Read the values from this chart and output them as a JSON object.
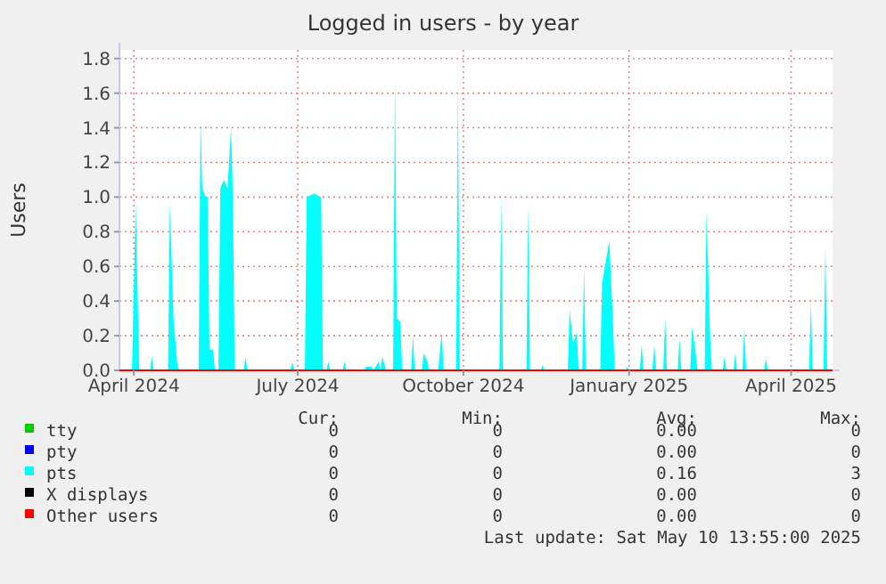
{
  "chart_data": {
    "type": "area",
    "title": "Logged in users - by year",
    "ylabel": "Users",
    "xlim": [
      "2024-03-24",
      "2025-04-24"
    ],
    "xticks": [
      {
        "value": "2024-04-01",
        "label": "April 2024"
      },
      {
        "value": "2024-07-01",
        "label": "July 2024"
      },
      {
        "value": "2024-10-01",
        "label": "October 2024"
      },
      {
        "value": "2025-01-01",
        "label": "January 2025"
      },
      {
        "value": "2025-04-01",
        "label": "April 2025"
      }
    ],
    "ylim": [
      0,
      1.85
    ],
    "yticks": [
      {
        "value": 0,
        "label": "0.0"
      },
      {
        "value": 0.2,
        "label": "0.2"
      },
      {
        "value": 0.4,
        "label": "0.4"
      },
      {
        "value": 0.6,
        "label": "0.6"
      },
      {
        "value": 0.8,
        "label": "0.8"
      },
      {
        "value": 1,
        "label": "1.0"
      },
      {
        "value": 1.2,
        "label": "1.2"
      },
      {
        "value": 1.4,
        "label": "1.4"
      },
      {
        "value": 1.6,
        "label": "1.6"
      },
      {
        "value": 1.8,
        "label": "1.8"
      }
    ],
    "grid": true,
    "legend": "bottom",
    "series": [
      {
        "name": "tty",
        "type": "line",
        "color": "#00cc00"
      },
      {
        "name": "pty",
        "type": "line",
        "color": "#0000ff"
      },
      {
        "name": "pts",
        "color": "#00ffff",
        "x": [
          "2024-03-24",
          "2024-03-31",
          "2024-04-02",
          "2024-04-04",
          "2024-04-10",
          "2024-04-11",
          "2024-04-12",
          "2024-04-20",
          "2024-04-21",
          "2024-04-23",
          "2024-04-25",
          "2024-04-26",
          "2024-05-07",
          "2024-05-08",
          "2024-05-09",
          "2024-05-11",
          "2024-05-12",
          "2024-05-13",
          "2024-05-15",
          "2024-05-16",
          "2024-05-18",
          "2024-05-19",
          "2024-05-21",
          "2024-05-23",
          "2024-05-25",
          "2024-05-26",
          "2024-05-27",
          "2024-06-01",
          "2024-06-02",
          "2024-06-03",
          "2024-06-27",
          "2024-06-28",
          "2024-06-29",
          "2024-07-05",
          "2024-07-06",
          "2024-07-10",
          "2024-07-14",
          "2024-07-15",
          "2024-07-17",
          "2024-07-18",
          "2024-07-19",
          "2024-07-26",
          "2024-07-27",
          "2024-07-28",
          "2024-08-07",
          "2024-08-08",
          "2024-08-11",
          "2024-08-12",
          "2024-08-15",
          "2024-08-16",
          "2024-08-17",
          "2024-08-19",
          "2024-08-23",
          "2024-08-24",
          "2024-08-25",
          "2024-08-27",
          "2024-08-28",
          "2024-09-02",
          "2024-09-03",
          "2024-09-04",
          "2024-09-08",
          "2024-09-09",
          "2024-09-11",
          "2024-09-12",
          "2024-09-17",
          "2024-09-19",
          "2024-09-20",
          "2024-09-27",
          "2024-09-28",
          "2024-09-29",
          "2024-10-21",
          "2024-10-22",
          "2024-10-23",
          "2024-11-05",
          "2024-11-06",
          "2024-11-07",
          "2024-11-13",
          "2024-11-14",
          "2024-11-15",
          "2024-11-28",
          "2024-11-29",
          "2024-12-01",
          "2024-12-03",
          "2024-12-04",
          "2024-12-06",
          "2024-12-07",
          "2024-12-08",
          "2024-12-16",
          "2024-12-17",
          "2024-12-21",
          "2024-12-23",
          "2024-12-24",
          "2024-12-30",
          "2024-12-31",
          "2025-01-01",
          "2025-01-07",
          "2025-01-08",
          "2025-01-09",
          "2025-01-14",
          "2025-01-15",
          "2025-01-16",
          "2025-01-20",
          "2025-01-21",
          "2025-01-22",
          "2025-01-28",
          "2025-01-29",
          "2025-01-30",
          "2025-02-04",
          "2025-02-05",
          "2025-02-07",
          "2025-02-08",
          "2025-02-12",
          "2025-02-13",
          "2025-02-15",
          "2025-02-16",
          "2025-02-22",
          "2025-02-23",
          "2025-02-24",
          "2025-02-28",
          "2025-03-01",
          "2025-03-02",
          "2025-03-05",
          "2025-03-06",
          "2025-03-07",
          "2025-03-17",
          "2025-03-18",
          "2025-03-19",
          "2025-04-11",
          "2025-04-12",
          "2025-04-13",
          "2025-04-19",
          "2025-04-20",
          "2025-04-21",
          "2025-04-24"
        ],
        "values": [
          0,
          0,
          0.97,
          0,
          0,
          0.08,
          0,
          0,
          0.97,
          0.3,
          0.05,
          0,
          0,
          1.45,
          1.05,
          1.0,
          1.0,
          0.12,
          0.12,
          0,
          0,
          1.05,
          1.1,
          1.05,
          1.4,
          1.0,
          0,
          0,
          0.08,
          0,
          0,
          0.05,
          0,
          0,
          1.0,
          1.02,
          1.0,
          0,
          0,
          0.05,
          0,
          0,
          0.05,
          0,
          0,
          0.02,
          0.02,
          0,
          0.05,
          0,
          0.08,
          0,
          0,
          1.7,
          0.3,
          0.28,
          0,
          0,
          0.2,
          0,
          0,
          0.1,
          0.05,
          0,
          0,
          0.22,
          0,
          0,
          1.65,
          0,
          0,
          1.0,
          0,
          0,
          0.95,
          0,
          0,
          0.03,
          0,
          0,
          0.35,
          0.15,
          0.22,
          0,
          0,
          0.6,
          0,
          0,
          0.5,
          0.75,
          0.3,
          0,
          0,
          0.02,
          0,
          0,
          0.15,
          0,
          0,
          0.15,
          0,
          0,
          0.3,
          0,
          0,
          0.18,
          0,
          0,
          0.25,
          0.1,
          0,
          0,
          0.92,
          0.2,
          0,
          0,
          0.08,
          0,
          0,
          0.1,
          0,
          0,
          0.25,
          0,
          0,
          0.07,
          0,
          0,
          0.4,
          0,
          0,
          0.72,
          0,
          0
        ]
      },
      {
        "name": "X displays",
        "type": "line",
        "color": "#000000"
      },
      {
        "name": "Other users",
        "type": "line",
        "color": "#ff0000",
        "x": [
          "2024-03-24",
          "2025-04-24"
        ],
        "values": [
          0,
          0
        ]
      }
    ],
    "annotations": [
      "Cur: Min: Avg: Max:",
      "0 0 0.00 0",
      "0 0 0.00 0",
      "0 0 0.16 3",
      "0 0 0.00 0",
      "0 0 0.00 0",
      "Last update: Sat May 10 13:55:00 2025"
    ]
  }
}
